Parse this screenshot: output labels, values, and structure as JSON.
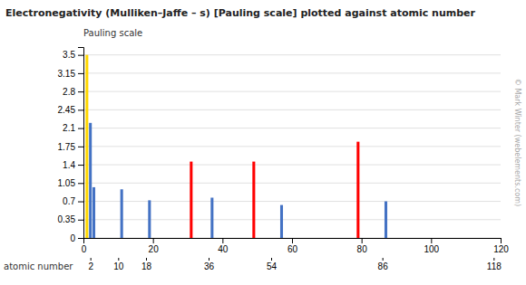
{
  "chart_data": {
    "type": "bar",
    "title": "Electronegativity (Mulliken–Jaffe – s) [Pauling scale] plotted against atomic number",
    "y_label": "Pauling scale",
    "x_label": "atomic number",
    "x": [
      1,
      2,
      3,
      11,
      19,
      31,
      37,
      49,
      57,
      79,
      87
    ],
    "values": [
      3.5,
      2.2,
      0.97,
      0.93,
      0.72,
      1.46,
      0.77,
      1.46,
      0.63,
      1.84,
      0.7
    ],
    "colors": [
      "#FFD700",
      "#4472C4",
      "#4472C4",
      "#4472C4",
      "#4472C4",
      "#FF0000",
      "#4472C4",
      "#FF0000",
      "#4472C4",
      "#FF0000",
      "#4472C4"
    ],
    "xlim": [
      0,
      120
    ],
    "xticks": [
      0,
      20,
      40,
      60,
      80,
      100,
      120
    ],
    "x2ticks": [
      2,
      10,
      18,
      36,
      54,
      86,
      118
    ],
    "ylim": [
      0,
      3.65
    ],
    "yticks": [
      0,
      0.35,
      0.7,
      1.05,
      1.4,
      1.75,
      2.1,
      2.45,
      2.8,
      3.15,
      3.5
    ],
    "grid": true,
    "annotations": [
      "© Mark Winter (webelements.com)"
    ]
  }
}
